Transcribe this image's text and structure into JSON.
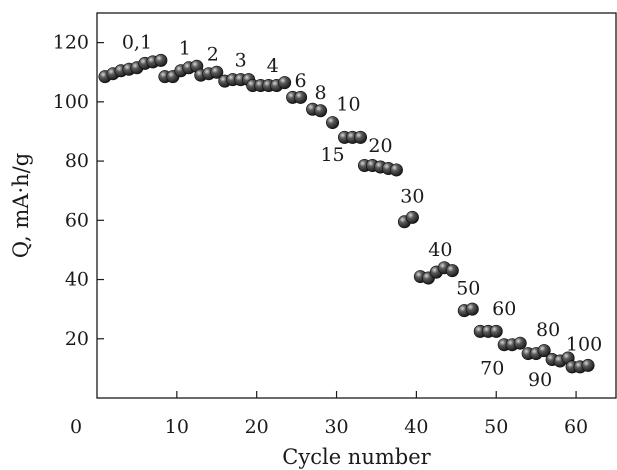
{
  "chart_data": {
    "type": "scatter",
    "xlabel": "Cycle number",
    "ylabel": "Q, mA·h/g",
    "xlim": [
      0,
      65
    ],
    "ylim": [
      0,
      130
    ],
    "xticks": [
      0,
      10,
      20,
      30,
      40,
      50,
      60
    ],
    "yticks": [
      20,
      40,
      60,
      80,
      100,
      120
    ],
    "grid": false,
    "marker_color": "#2a2a2a",
    "series": [
      {
        "points": [
          [
            1,
            108.5
          ],
          [
            2,
            109.5
          ],
          [
            3,
            110.5
          ],
          [
            4,
            111
          ],
          [
            5,
            111.5
          ],
          [
            6,
            113
          ],
          [
            7,
            113.5
          ],
          [
            8,
            114
          ],
          [
            8.5,
            108.5
          ],
          [
            9.5,
            108.5
          ],
          [
            10.5,
            110.5
          ],
          [
            11.5,
            111.5
          ],
          [
            12.5,
            112
          ],
          [
            13,
            109
          ],
          [
            14,
            109.5
          ],
          [
            15,
            110
          ],
          [
            16,
            107
          ],
          [
            17,
            107.5
          ],
          [
            18,
            107.5
          ],
          [
            19,
            107.5
          ],
          [
            19.5,
            105.5
          ],
          [
            20.5,
            105.5
          ],
          [
            21.5,
            105.5
          ],
          [
            22.5,
            105.5
          ],
          [
            23.5,
            106.5
          ],
          [
            24.5,
            101.5
          ],
          [
            25.5,
            101.5
          ],
          [
            27,
            97.5
          ],
          [
            28,
            97
          ],
          [
            29.5,
            93
          ],
          [
            31,
            88
          ],
          [
            32,
            88
          ],
          [
            33,
            88
          ],
          [
            33.5,
            78.5
          ],
          [
            34.5,
            78.5
          ],
          [
            35.5,
            78
          ],
          [
            36.5,
            77.5
          ],
          [
            37.5,
            77
          ],
          [
            38.5,
            59.5
          ],
          [
            39.5,
            61
          ],
          [
            40.5,
            41
          ],
          [
            41.5,
            40.5
          ],
          [
            42.5,
            42.5
          ],
          [
            43.5,
            44
          ],
          [
            44.5,
            43
          ],
          [
            46,
            29.5
          ],
          [
            47,
            30
          ],
          [
            48,
            22.5
          ],
          [
            49,
            22.5
          ],
          [
            50,
            22.5
          ],
          [
            51,
            18
          ],
          [
            52,
            18
          ],
          [
            53,
            18.5
          ],
          [
            54,
            15
          ],
          [
            55,
            15
          ],
          [
            56,
            16
          ],
          [
            57,
            13
          ],
          [
            58,
            12.5
          ],
          [
            59,
            13.5
          ],
          [
            59.5,
            10.5
          ],
          [
            60.5,
            10.5
          ],
          [
            61.5,
            11
          ]
        ]
      }
    ],
    "annotations": [
      {
        "text": "0,1",
        "x": 5,
        "y": 118
      },
      {
        "text": "1",
        "x": 11,
        "y": 116
      },
      {
        "text": "2",
        "x": 14.5,
        "y": 114
      },
      {
        "text": "3",
        "x": 18,
        "y": 112
      },
      {
        "text": "4",
        "x": 22,
        "y": 110
      },
      {
        "text": "6",
        "x": 25.5,
        "y": 105
      },
      {
        "text": "8",
        "x": 28,
        "y": 101
      },
      {
        "text": "10",
        "x": 31.5,
        "y": 97
      },
      {
        "text": "15",
        "x": 29.5,
        "y": 80
      },
      {
        "text": "20",
        "x": 35.5,
        "y": 83
      },
      {
        "text": "30",
        "x": 39.5,
        "y": 66
      },
      {
        "text": "40",
        "x": 43,
        "y": 48
      },
      {
        "text": "50",
        "x": 46.5,
        "y": 35
      },
      {
        "text": "60",
        "x": 51,
        "y": 28
      },
      {
        "text": "70",
        "x": 49.5,
        "y": 8
      },
      {
        "text": "80",
        "x": 56.5,
        "y": 21
      },
      {
        "text": "90",
        "x": 55.5,
        "y": 4
      },
      {
        "text": "100",
        "x": 61,
        "y": 16
      }
    ]
  }
}
